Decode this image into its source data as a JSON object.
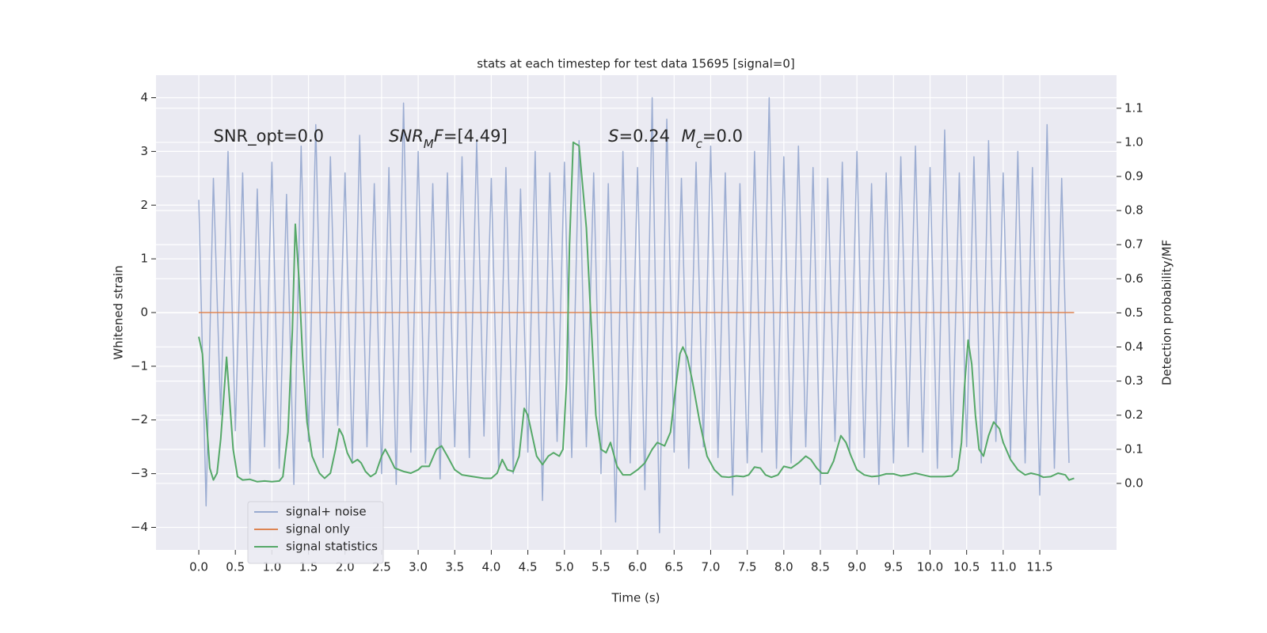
{
  "chart_data": {
    "type": "line",
    "title": "stats at each timestep for test data 15695 [signal=0]",
    "xlabel": "Time (s)",
    "ylabel": "Whitened strain",
    "y2label": "Detection probability/MF",
    "xlim": [
      -0.585,
      12.55
    ],
    "ylim": [
      -4.42,
      4.42
    ],
    "y2lim": [
      -0.195,
      1.197
    ],
    "xticks": [
      {
        "value": 0,
        "label": "0.0"
      },
      0.5,
      {
        "value": 1,
        "label": "1.0"
      },
      1.5,
      {
        "value": 2,
        "label": "2.0"
      },
      2.5,
      {
        "value": 3,
        "label": "3.0"
      },
      3.5,
      {
        "value": 4,
        "label": "4.0"
      },
      4.5,
      {
        "value": 5,
        "label": "5.0"
      },
      5.5,
      {
        "value": 6,
        "label": "6.0"
      },
      6.5,
      {
        "value": 7,
        "label": "7.0"
      },
      7.5,
      {
        "value": 8,
        "label": "8.0"
      },
      8.5,
      {
        "value": 9,
        "label": "9.0"
      },
      9.5,
      {
        "value": 10,
        "label": "10.0"
      },
      10.5,
      {
        "value": 11,
        "label": "11.0"
      },
      11.5
    ],
    "yticks": [
      {
        "value": -4,
        "label": "−4"
      },
      {
        "value": -3,
        "label": "−3"
      },
      {
        "value": -2,
        "label": "−2"
      },
      {
        "value": -1,
        "label": "−1"
      },
      0,
      1,
      2,
      3,
      4
    ],
    "y2ticks": [
      {
        "value": 0,
        "label": "0.0"
      },
      0.1,
      0.2,
      0.3,
      0.4,
      0.5,
      0.6,
      0.7,
      0.8,
      0.9,
      {
        "value": 1,
        "label": "1.0"
      },
      1.1
    ],
    "grid": true,
    "legend": "lower left",
    "annotations": [
      {
        "text": "SNR_opt=0.0",
        "x": 0.2,
        "math": false
      },
      {
        "text": "SNR_MF=[4.49]",
        "x": 2.6,
        "math": true
      },
      {
        "text": "S=0.24",
        "x": 5.6,
        "math": true
      },
      {
        "text": "M_c=0.0",
        "x": 6.6,
        "math": true
      }
    ],
    "series": [
      {
        "name": "signal+ noise",
        "color": "#98aad0",
        "axis": "y",
        "x": [
          0.0,
          0.1,
          0.2,
          0.3,
          0.4,
          0.5,
          0.6,
          0.7,
          0.8,
          0.9,
          1.0,
          1.1,
          1.2,
          1.3,
          1.4,
          1.5,
          1.6,
          1.7,
          1.8,
          1.9,
          2.0,
          2.1,
          2.2,
          2.3,
          2.4,
          2.5,
          2.6,
          2.7,
          2.8,
          2.9,
          3.0,
          3.1,
          3.2,
          3.3,
          3.4,
          3.5,
          3.6,
          3.7,
          3.8,
          3.9,
          4.0,
          4.1,
          4.2,
          4.3,
          4.4,
          4.5,
          4.6,
          4.7,
          4.8,
          4.9,
          5.0,
          5.1,
          5.2,
          5.3,
          5.4,
          5.5,
          5.6,
          5.7,
          5.8,
          5.9,
          6.0,
          6.1,
          6.2,
          6.3,
          6.4,
          6.5,
          6.6,
          6.7,
          6.8,
          6.9,
          7.0,
          7.1,
          7.2,
          7.3,
          7.4,
          7.5,
          7.6,
          7.7,
          7.8,
          7.9,
          8.0,
          8.1,
          8.2,
          8.3,
          8.4,
          8.5,
          8.6,
          8.7,
          8.8,
          8.9,
          9.0,
          9.1,
          9.2,
          9.3,
          9.4,
          9.5,
          9.6,
          9.7,
          9.8,
          9.9,
          10.0,
          10.1,
          10.2,
          10.3,
          10.4,
          10.5,
          10.6,
          10.7,
          10.8,
          10.9,
          11.0,
          11.1,
          11.2,
          11.3,
          11.4,
          11.5,
          11.6,
          11.7,
          11.8,
          11.9
        ],
        "values": [
          2.1,
          -3.6,
          2.5,
          -1.9,
          3.0,
          -2.2,
          2.6,
          -3.0,
          2.3,
          -2.5,
          2.8,
          -2.9,
          2.2,
          -3.2,
          3.1,
          -2.4,
          3.5,
          -2.7,
          2.9,
          -2.1,
          2.6,
          -2.8,
          3.3,
          -2.5,
          2.4,
          -3.0,
          2.7,
          -3.2,
          3.9,
          -2.6,
          3.0,
          -2.8,
          2.4,
          -3.1,
          2.6,
          -2.5,
          2.9,
          -2.7,
          3.2,
          -2.3,
          2.5,
          -2.9,
          2.7,
          -3.0,
          2.3,
          -2.6,
          3.0,
          -3.5,
          2.6,
          -2.4,
          2.8,
          -2.7,
          3.2,
          -2.5,
          2.6,
          -3.0,
          2.4,
          -3.9,
          3.0,
          -2.8,
          2.7,
          -3.3,
          4.0,
          -4.1,
          3.6,
          -2.6,
          2.5,
          -2.9,
          2.8,
          -2.5,
          3.1,
          -2.7,
          2.6,
          -3.4,
          2.4,
          -2.8,
          3.0,
          -2.6,
          4.0,
          -2.9,
          2.9,
          -2.8,
          3.1,
          -2.5,
          2.7,
          -3.2,
          2.5,
          -2.4,
          2.8,
          -2.6,
          3.0,
          -2.7,
          2.4,
          -3.2,
          2.6,
          -2.8,
          2.9,
          -2.5,
          3.1,
          -2.6,
          2.7,
          -2.9,
          3.4,
          -2.7,
          2.6,
          -2.5,
          2.9,
          -2.8,
          3.2,
          -2.4,
          2.6,
          -2.7,
          3.0,
          -2.8,
          2.7,
          -3.4,
          3.5,
          -2.9,
          2.5,
          -2.8
        ]
      },
      {
        "name": "signal only",
        "color": "#dd8452",
        "axis": "y",
        "x": [
          0.0,
          11.97
        ],
        "values": [
          0,
          0
        ]
      },
      {
        "name": "signal statistics",
        "color": "#55a868",
        "axis": "y2",
        "x": [
          0.0,
          0.05,
          0.1,
          0.15,
          0.2,
          0.25,
          0.3,
          0.35,
          0.38,
          0.42,
          0.47,
          0.53,
          0.6,
          0.7,
          0.8,
          0.9,
          1.0,
          1.1,
          1.15,
          1.22,
          1.28,
          1.32,
          1.37,
          1.42,
          1.48,
          1.55,
          1.65,
          1.72,
          1.8,
          1.87,
          1.92,
          1.97,
          2.03,
          2.1,
          2.17,
          2.22,
          2.28,
          2.35,
          2.42,
          2.5,
          2.55,
          2.6,
          2.68,
          2.8,
          2.9,
          3.0,
          3.05,
          3.15,
          3.25,
          3.32,
          3.4,
          3.5,
          3.6,
          3.75,
          3.9,
          4.0,
          4.08,
          4.15,
          4.22,
          4.3,
          4.38,
          4.45,
          4.5,
          4.55,
          4.62,
          4.7,
          4.78,
          4.85,
          4.93,
          4.98,
          5.03,
          5.07,
          5.12,
          5.2,
          5.3,
          5.37,
          5.43,
          5.5,
          5.57,
          5.63,
          5.72,
          5.8,
          5.9,
          6.0,
          6.1,
          6.2,
          6.27,
          6.37,
          6.45,
          6.52,
          6.58,
          6.62,
          6.68,
          6.75,
          6.85,
          6.95,
          7.05,
          7.15,
          7.25,
          7.35,
          7.45,
          7.52,
          7.6,
          7.68,
          7.75,
          7.83,
          7.92,
          8.0,
          8.1,
          8.2,
          8.3,
          8.37,
          8.45,
          8.52,
          8.6,
          8.68,
          8.78,
          8.85,
          8.92,
          9.0,
          9.1,
          9.2,
          9.3,
          9.4,
          9.5,
          9.6,
          9.7,
          9.8,
          9.9,
          10.0,
          10.1,
          10.2,
          10.3,
          10.38,
          10.43,
          10.47,
          10.52,
          10.57,
          10.62,
          10.67,
          10.73,
          10.8,
          10.87,
          10.95,
          11.0,
          11.1,
          11.2,
          11.3,
          11.38,
          11.48,
          11.55,
          11.65,
          11.75,
          11.85,
          11.9,
          11.97
        ],
        "values": [
          0.43,
          0.38,
          0.2,
          0.045,
          0.01,
          0.03,
          0.13,
          0.28,
          0.37,
          0.25,
          0.1,
          0.02,
          0.01,
          0.012,
          0.005,
          0.007,
          0.005,
          0.007,
          0.02,
          0.15,
          0.45,
          0.76,
          0.6,
          0.37,
          0.18,
          0.08,
          0.03,
          0.015,
          0.03,
          0.1,
          0.16,
          0.14,
          0.09,
          0.06,
          0.07,
          0.06,
          0.035,
          0.02,
          0.03,
          0.08,
          0.1,
          0.08,
          0.045,
          0.035,
          0.03,
          0.04,
          0.05,
          0.05,
          0.1,
          0.11,
          0.08,
          0.04,
          0.025,
          0.02,
          0.015,
          0.015,
          0.03,
          0.07,
          0.04,
          0.035,
          0.08,
          0.22,
          0.2,
          0.15,
          0.08,
          0.055,
          0.08,
          0.09,
          0.08,
          0.1,
          0.3,
          0.7,
          1.0,
          0.99,
          0.75,
          0.45,
          0.2,
          0.1,
          0.09,
          0.12,
          0.05,
          0.025,
          0.025,
          0.04,
          0.06,
          0.1,
          0.12,
          0.11,
          0.15,
          0.28,
          0.38,
          0.4,
          0.37,
          0.3,
          0.18,
          0.08,
          0.04,
          0.02,
          0.018,
          0.022,
          0.02,
          0.025,
          0.048,
          0.045,
          0.025,
          0.018,
          0.025,
          0.05,
          0.045,
          0.06,
          0.08,
          0.07,
          0.045,
          0.03,
          0.03,
          0.065,
          0.14,
          0.12,
          0.08,
          0.04,
          0.025,
          0.02,
          0.022,
          0.028,
          0.028,
          0.022,
          0.025,
          0.03,
          0.025,
          0.02,
          0.02,
          0.02,
          0.022,
          0.04,
          0.12,
          0.28,
          0.42,
          0.35,
          0.2,
          0.1,
          0.08,
          0.14,
          0.18,
          0.16,
          0.12,
          0.07,
          0.04,
          0.025,
          0.03,
          0.025,
          0.018,
          0.02,
          0.03,
          0.025,
          0.01,
          0.015
        ]
      }
    ]
  }
}
